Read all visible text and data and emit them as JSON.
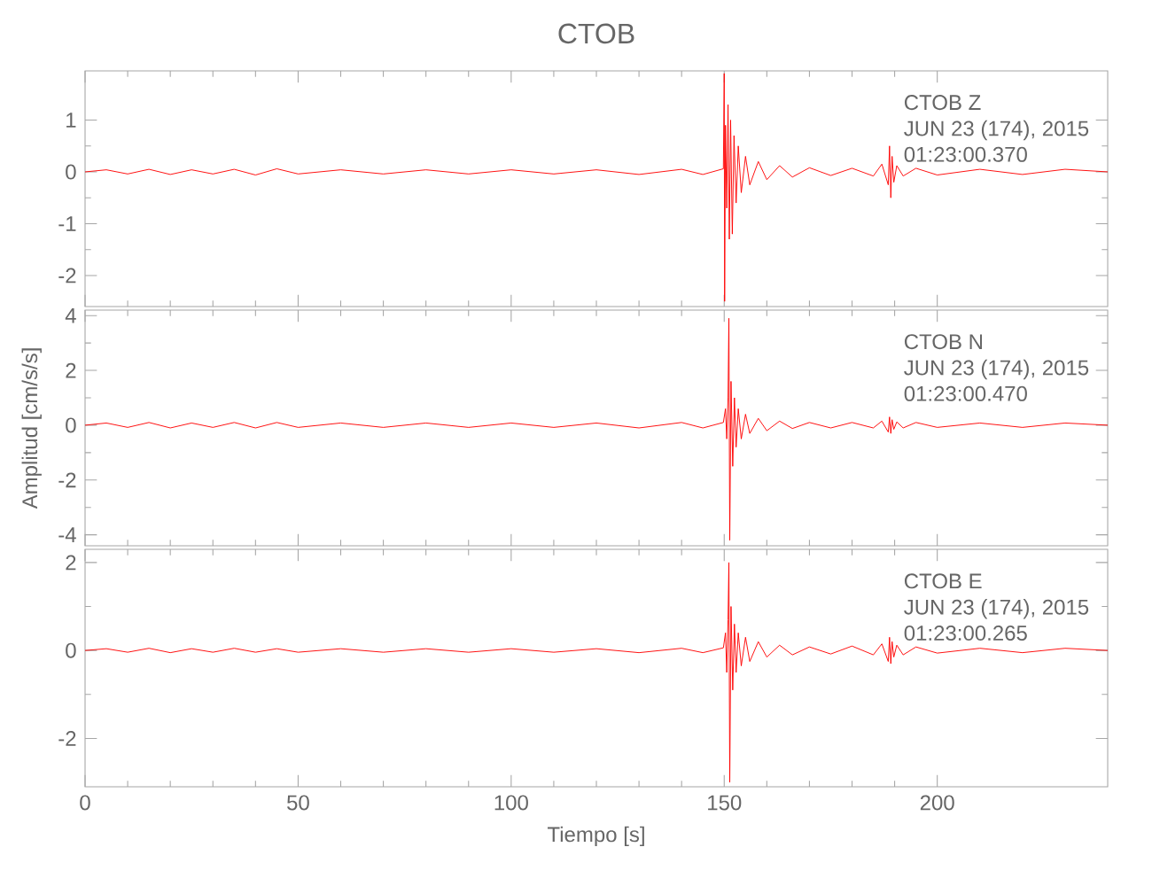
{
  "chart_data": [
    {
      "type": "line",
      "title": "CTOB",
      "annotations": [
        "CTOB   Z",
        "JUN 23 (174), 2015",
        "01:23:00.370"
      ],
      "tick_labels": "y",
      "xlim": [
        0,
        240
      ],
      "xticks": [
        0,
        50,
        100,
        150,
        200
      ],
      "ylim": [
        -2.6,
        1.95
      ],
      "yticks": [
        -2,
        -1,
        0,
        1
      ],
      "color": "#ff0000",
      "x": [
        0,
        5,
        10,
        15,
        20,
        25,
        30,
        35,
        40,
        45,
        50,
        60,
        70,
        80,
        90,
        100,
        110,
        120,
        130,
        140,
        145,
        149.8,
        150.0,
        150.1,
        150.3,
        150.6,
        150.9,
        151.2,
        151.5,
        151.9,
        152.3,
        152.8,
        153.3,
        154,
        155,
        156,
        158,
        160,
        163,
        166,
        170,
        175,
        180,
        185,
        187,
        188.5,
        188.8,
        189.1,
        189.4,
        189.8,
        190.5,
        192,
        195,
        200,
        210,
        220,
        230,
        240
      ],
      "values": [
        0,
        0.04,
        -0.04,
        0.05,
        -0.05,
        0.04,
        -0.04,
        0.05,
        -0.06,
        0.06,
        -0.04,
        0.04,
        -0.04,
        0.04,
        -0.04,
        0.04,
        -0.04,
        0.04,
        -0.05,
        0.05,
        -0.05,
        0.06,
        1.9,
        -2.5,
        0.9,
        -0.7,
        1.3,
        -1.3,
        1.0,
        -1.2,
        0.7,
        -0.6,
        0.5,
        -0.4,
        0.3,
        -0.25,
        0.2,
        -0.15,
        0.12,
        -0.1,
        0.08,
        -0.07,
        0.07,
        -0.08,
        0.15,
        -0.25,
        0.5,
        -0.5,
        0.3,
        -0.2,
        0.12,
        -0.08,
        0.07,
        -0.06,
        0.05,
        -0.05,
        0.05,
        0
      ]
    },
    {
      "type": "line",
      "ylabel": "Amplitud [cm/s/s]",
      "annotations": [
        "CTOB   N",
        "JUN 23 (174), 2015",
        "01:23:00.470"
      ],
      "tick_labels": "y",
      "xlim": [
        0,
        240
      ],
      "xticks": [
        0,
        50,
        100,
        150,
        200
      ],
      "ylim": [
        -4.4,
        4.2
      ],
      "yticks": [
        -4,
        -2,
        0,
        2,
        4
      ],
      "color": "#ff0000",
      "x": [
        0,
        5,
        10,
        15,
        20,
        25,
        30,
        35,
        40,
        45,
        50,
        60,
        70,
        80,
        90,
        100,
        110,
        120,
        130,
        140,
        145,
        149.8,
        150.3,
        150.6,
        150.9,
        151.1,
        151.3,
        151.6,
        152,
        152.4,
        152.8,
        153.3,
        154,
        155,
        156,
        158,
        160,
        163,
        166,
        170,
        175,
        180,
        185,
        187,
        188.5,
        188.8,
        189.1,
        189.4,
        189.8,
        190.5,
        192,
        195,
        200,
        210,
        220,
        230,
        240
      ],
      "values": [
        0,
        0.08,
        -0.08,
        0.1,
        -0.1,
        0.08,
        -0.08,
        0.1,
        -0.1,
        0.1,
        -0.08,
        0.08,
        -0.08,
        0.08,
        -0.08,
        0.08,
        -0.08,
        0.08,
        -0.1,
        0.1,
        -0.1,
        0.1,
        0.6,
        -0.5,
        1.0,
        3.9,
        -4.2,
        1.6,
        -1.5,
        1.0,
        -0.8,
        0.6,
        -0.5,
        0.4,
        -0.3,
        0.25,
        -0.2,
        0.15,
        -0.12,
        0.1,
        -0.1,
        0.1,
        -0.1,
        0.15,
        -0.25,
        0.3,
        -0.3,
        0.2,
        -0.15,
        0.12,
        -0.1,
        0.1,
        -0.08,
        0.08,
        -0.08,
        0.08,
        0
      ]
    },
    {
      "type": "line",
      "xlabel": "Tiempo [s]",
      "annotations": [
        "CTOB   E",
        "JUN 23 (174), 2015",
        "01:23:00.265"
      ],
      "xlim": [
        0,
        240
      ],
      "xticks": [
        0,
        50,
        100,
        150,
        200
      ],
      "ylim": [
        -3.1,
        2.3
      ],
      "yticks": [
        -2,
        0,
        2
      ],
      "color": "#ff0000",
      "x": [
        0,
        5,
        10,
        15,
        20,
        25,
        30,
        35,
        40,
        45,
        50,
        60,
        70,
        80,
        90,
        100,
        110,
        120,
        130,
        140,
        145,
        149.8,
        150.3,
        150.6,
        150.9,
        151.1,
        151.3,
        151.6,
        152,
        152.4,
        152.8,
        153.3,
        154,
        155,
        156,
        158,
        160,
        163,
        166,
        170,
        175,
        180,
        185,
        187,
        188.5,
        188.8,
        189.1,
        189.4,
        189.8,
        190.5,
        192,
        195,
        200,
        210,
        220,
        230,
        240
      ],
      "values": [
        0,
        0.04,
        -0.04,
        0.05,
        -0.05,
        0.04,
        -0.04,
        0.05,
        -0.04,
        0.04,
        -0.04,
        0.04,
        -0.04,
        0.04,
        -0.04,
        0.04,
        -0.04,
        0.04,
        -0.05,
        0.05,
        -0.05,
        0.06,
        0.4,
        -0.5,
        0.7,
        2.0,
        -3.0,
        1.0,
        -0.9,
        0.6,
        -0.5,
        0.4,
        -0.35,
        0.3,
        -0.25,
        0.2,
        -0.15,
        0.12,
        -0.1,
        0.08,
        -0.08,
        0.1,
        -0.1,
        0.15,
        -0.25,
        0.3,
        -0.3,
        0.2,
        -0.15,
        0.12,
        -0.1,
        0.08,
        -0.06,
        0.05,
        -0.05,
        0.05,
        0
      ]
    }
  ]
}
